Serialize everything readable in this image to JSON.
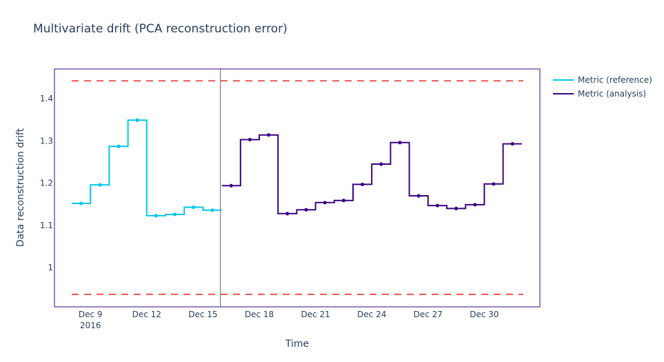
{
  "title": "Multivariate drift (PCA reconstruction error)",
  "legend": [
    {
      "label": "Metric (reference)",
      "color": "#00c8e5"
    },
    {
      "label": "Metric (analysis)",
      "color": "#3b0280"
    }
  ],
  "chart_data": {
    "type": "line",
    "line_shape": "step",
    "title": "Multivariate drift (PCA reconstruction error)",
    "xlabel": "Time",
    "ylabel": "Data reconstruction drift",
    "x_ticks": [
      "Dec 9\n2016",
      "Dec 12",
      "Dec 15",
      "Dec 18",
      "Dec 21",
      "Dec 24",
      "Dec 27",
      "Dec 30"
    ],
    "y_ticks": [
      "1",
      "1.1",
      "1.2",
      "1.3",
      "1.4"
    ],
    "ylim": [
      0.91,
      1.47
    ],
    "grid": false,
    "legend_position": "right",
    "series": [
      {
        "name": "Metric (reference)",
        "color": "#00c8e5",
        "x": [
          "2016-12-08",
          "2016-12-09",
          "2016-12-10",
          "2016-12-11",
          "2016-12-12",
          "2016-12-13",
          "2016-12-14",
          "2016-12-15"
        ],
        "values": [
          1.152,
          1.196,
          1.287,
          1.349,
          1.123,
          1.126,
          1.143,
          1.136
        ]
      },
      {
        "name": "Metric (analysis)",
        "color": "#3b0280",
        "x": [
          "2016-12-16",
          "2016-12-17",
          "2016-12-18",
          "2016-12-19",
          "2016-12-20",
          "2016-12-21",
          "2016-12-22",
          "2016-12-23",
          "2016-12-24",
          "2016-12-25",
          "2016-12-26",
          "2016-12-27",
          "2016-12-28",
          "2016-12-29",
          "2016-12-30",
          "2016-12-31"
        ],
        "values": [
          1.194,
          1.303,
          1.314,
          1.128,
          1.137,
          1.154,
          1.159,
          1.197,
          1.245,
          1.296,
          1.17,
          1.147,
          1.14,
          1.149,
          1.198,
          1.293
        ]
      }
    ],
    "thresholds": {
      "upper": 1.442,
      "lower": 0.937,
      "color": "#e53935",
      "style": "dashed"
    },
    "reference_analysis_split": "2016-12-16"
  }
}
